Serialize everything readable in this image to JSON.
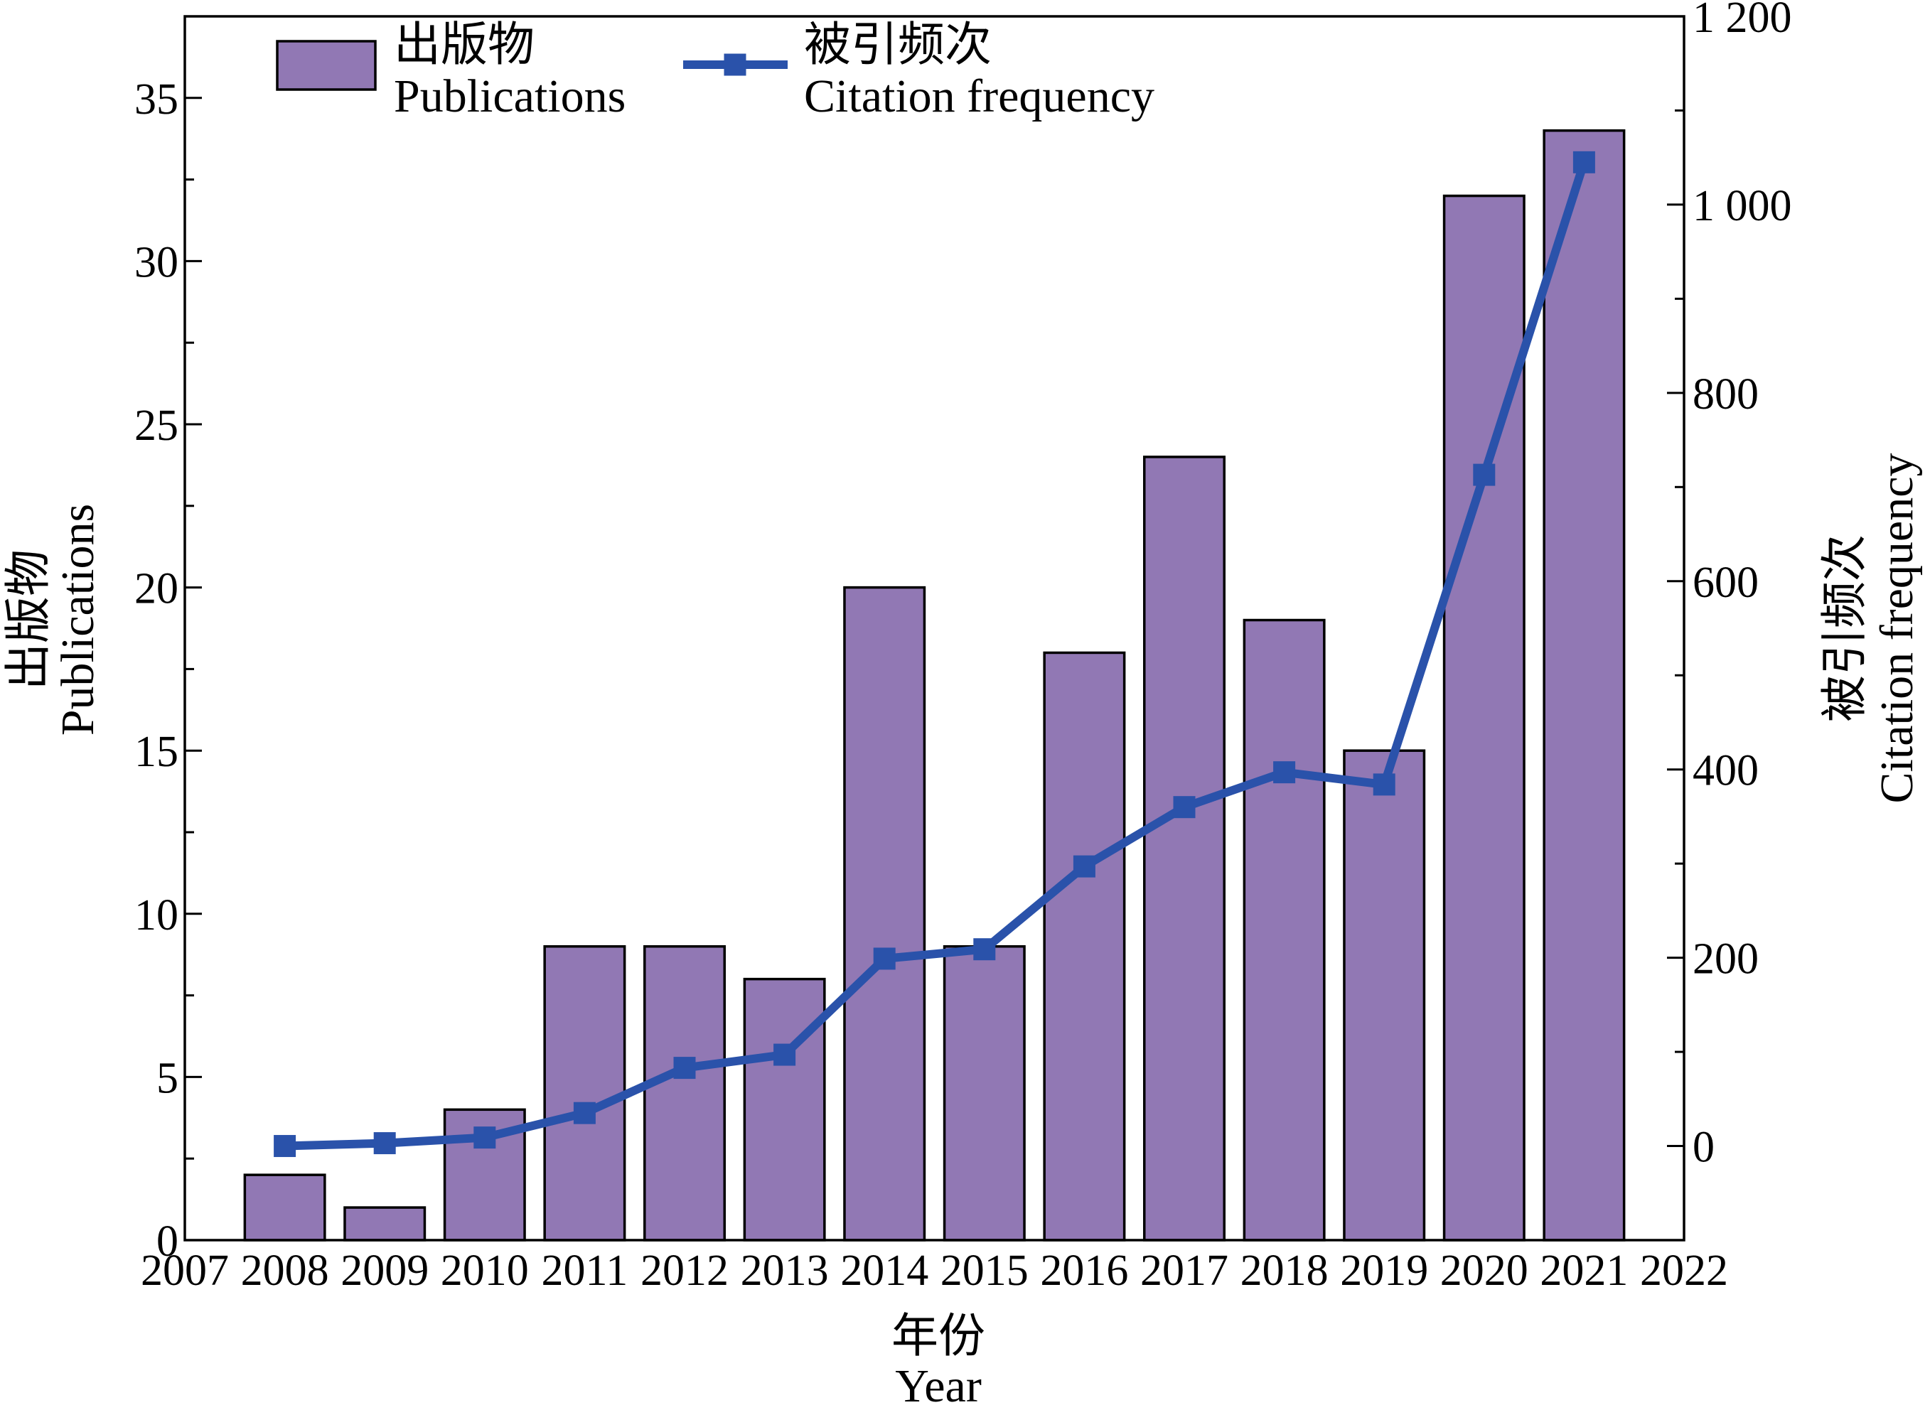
{
  "chart_data": {
    "type": "bar",
    "x": [
      2008,
      2009,
      2010,
      2011,
      2012,
      2013,
      2014,
      2015,
      2016,
      2017,
      2018,
      2019,
      2020,
      2021
    ],
    "series": [
      {
        "name_zh": "出版物",
        "name": "Publications",
        "type": "bar",
        "axis": "left",
        "values": [
          2,
          1,
          4,
          9,
          9,
          8,
          20,
          9,
          18,
          24,
          19,
          15,
          32,
          34
        ],
        "color": "#9178b4"
      },
      {
        "name_zh": "被引频次",
        "name": "Citation frequency",
        "type": "line",
        "axis": "right",
        "marker": "square",
        "values": [
          0,
          3,
          9,
          35,
          83,
          97,
          199,
          209,
          297,
          360,
          397,
          384,
          713,
          1045
        ],
        "color": "#2a52aa"
      }
    ],
    "xlabel_zh": "年份",
    "xlabel": "Year",
    "ylabel_zh": "出版物",
    "ylabel": "Publications",
    "y2label_zh": "被引频次",
    "y2label": "Citation frequency",
    "xlim": [
      2007,
      2022
    ],
    "ylim": [
      0,
      37.5
    ],
    "y2lim": [
      -100,
      1200
    ],
    "xticks": [
      2007,
      2008,
      2009,
      2010,
      2011,
      2012,
      2013,
      2014,
      2015,
      2016,
      2017,
      2018,
      2019,
      2020,
      2021,
      2022
    ],
    "yticks": [
      0,
      5,
      10,
      15,
      20,
      25,
      30,
      35
    ],
    "y2ticks": [
      0,
      200,
      400,
      600,
      800,
      1000,
      1200
    ],
    "y2tick_labels": [
      "0",
      "200",
      "400",
      "600",
      "800",
      "1 000",
      "1 200"
    ],
    "legend": "top-left",
    "grid": false
  }
}
